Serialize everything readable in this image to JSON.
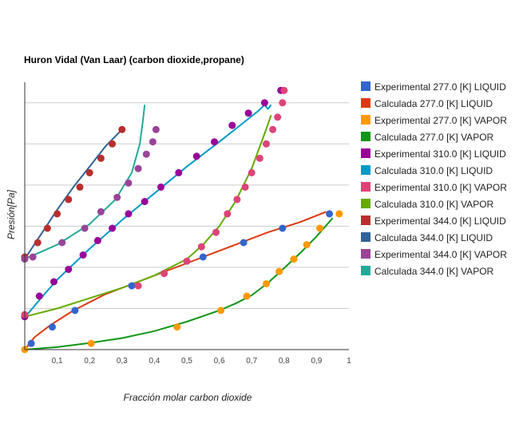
{
  "chart_data": {
    "type": "scatter",
    "title": "Huron Vidal (Van Laar) (carbon dioxide,propane)",
    "xlabel": "Fracción molar carbon dioxide",
    "ylabel": "Presión[Pa]",
    "xlim": [
      0,
      1
    ],
    "ylim": [
      0,
      6.5
    ],
    "x_ticks": [
      "0,1",
      "0,2",
      "0,3",
      "0,4",
      "0,5",
      "0,6",
      "0,7",
      "0,8",
      "0,9",
      "1"
    ],
    "y_ticks_labeled": false,
    "grid": "horizontal",
    "legend_position": "right",
    "series": [
      {
        "name": "Experimental 277.0 [K]  LIQUID",
        "kind": "points",
        "color": "#3366cc",
        "points": [
          [
            0.02,
            0.15
          ],
          [
            0.085,
            0.55
          ],
          [
            0.155,
            0.95
          ],
          [
            0.33,
            1.55
          ],
          [
            0.55,
            2.25
          ],
          [
            0.675,
            2.6
          ],
          [
            0.795,
            2.95
          ],
          [
            0.94,
            3.3
          ]
        ]
      },
      {
        "name": "Calculada 277.0 [K] LIQUID",
        "kind": "line",
        "color": "#dc3912",
        "points": [
          [
            0.0,
            0.0
          ],
          [
            0.03,
            0.3
          ],
          [
            0.08,
            0.6
          ],
          [
            0.15,
            0.95
          ],
          [
            0.25,
            1.35
          ],
          [
            0.35,
            1.65
          ],
          [
            0.45,
            1.95
          ],
          [
            0.55,
            2.25
          ],
          [
            0.65,
            2.55
          ],
          [
            0.75,
            2.85
          ],
          [
            0.85,
            3.1
          ],
          [
            0.93,
            3.35
          ]
        ]
      },
      {
        "name": "Experimental 277.0 [K] VAPOR",
        "kind": "points",
        "color": "#ff9900",
        "points": [
          [
            0.0,
            0.0
          ],
          [
            0.205,
            0.15
          ],
          [
            0.47,
            0.55
          ],
          [
            0.605,
            0.95
          ],
          [
            0.685,
            1.3
          ],
          [
            0.745,
            1.6
          ],
          [
            0.785,
            1.9
          ],
          [
            0.83,
            2.2
          ],
          [
            0.87,
            2.55
          ],
          [
            0.91,
            2.95
          ],
          [
            0.97,
            3.3
          ]
        ]
      },
      {
        "name": "Calculada 277.0 [K] VAPOR",
        "kind": "line",
        "color": "#109618",
        "points": [
          [
            0.0,
            0.0
          ],
          [
            0.1,
            0.06
          ],
          [
            0.2,
            0.16
          ],
          [
            0.3,
            0.28
          ],
          [
            0.4,
            0.45
          ],
          [
            0.5,
            0.68
          ],
          [
            0.6,
            0.95
          ],
          [
            0.65,
            1.12
          ],
          [
            0.7,
            1.32
          ],
          [
            0.75,
            1.62
          ],
          [
            0.8,
            1.98
          ],
          [
            0.85,
            2.35
          ],
          [
            0.9,
            2.75
          ],
          [
            0.95,
            3.2
          ]
        ]
      },
      {
        "name": "Experimental 310.0 [K]  LIQUID",
        "kind": "points",
        "color": "#990099",
        "points": [
          [
            0.0,
            0.8
          ],
          [
            0.045,
            1.3
          ],
          [
            0.09,
            1.65
          ],
          [
            0.135,
            1.95
          ],
          [
            0.18,
            2.3
          ],
          [
            0.225,
            2.65
          ],
          [
            0.27,
            2.95
          ],
          [
            0.32,
            3.3
          ],
          [
            0.37,
            3.6
          ],
          [
            0.42,
            3.95
          ],
          [
            0.475,
            4.3
          ],
          [
            0.53,
            4.7
          ],
          [
            0.585,
            5.05
          ],
          [
            0.64,
            5.45
          ],
          [
            0.69,
            5.75
          ],
          [
            0.74,
            6.0
          ],
          [
            0.79,
            6.3
          ]
        ]
      },
      {
        "name": "Calculada 310.0 [K] LIQUID",
        "kind": "line",
        "color": "#0099c6",
        "points": [
          [
            0.0,
            0.78
          ],
          [
            0.05,
            1.25
          ],
          [
            0.1,
            1.7
          ],
          [
            0.2,
            2.45
          ],
          [
            0.3,
            3.15
          ],
          [
            0.4,
            3.8
          ],
          [
            0.5,
            4.45
          ],
          [
            0.6,
            5.05
          ],
          [
            0.68,
            5.55
          ],
          [
            0.72,
            5.8
          ],
          [
            0.74,
            5.95
          ],
          [
            0.75,
            5.85
          ],
          [
            0.76,
            5.95
          ]
        ]
      },
      {
        "name": "Experimental 310.0 [K] VAPOR",
        "kind": "points",
        "color": "#dd4477",
        "points": [
          [
            0.0,
            0.85
          ],
          [
            0.35,
            1.55
          ],
          [
            0.43,
            1.85
          ],
          [
            0.5,
            2.15
          ],
          [
            0.545,
            2.5
          ],
          [
            0.59,
            2.85
          ],
          [
            0.625,
            3.3
          ],
          [
            0.655,
            3.65
          ],
          [
            0.68,
            3.95
          ],
          [
            0.7,
            4.3
          ],
          [
            0.725,
            4.65
          ],
          [
            0.745,
            5.0
          ],
          [
            0.765,
            5.35
          ],
          [
            0.78,
            5.65
          ],
          [
            0.795,
            6.0
          ],
          [
            0.8,
            6.3
          ]
        ]
      },
      {
        "name": "Calculada 310.0 [K] VAPOR",
        "kind": "line",
        "color": "#66aa00",
        "points": [
          [
            0.0,
            0.8
          ],
          [
            0.1,
            1.0
          ],
          [
            0.2,
            1.25
          ],
          [
            0.3,
            1.5
          ],
          [
            0.4,
            1.8
          ],
          [
            0.5,
            2.2
          ],
          [
            0.55,
            2.55
          ],
          [
            0.6,
            3.0
          ],
          [
            0.65,
            3.6
          ],
          [
            0.7,
            4.4
          ],
          [
            0.74,
            5.25
          ],
          [
            0.76,
            5.7
          ]
        ]
      },
      {
        "name": "Experimental 344.0 [K]  LIQUID",
        "kind": "points",
        "color": "#b82e2e",
        "points": [
          [
            0.0,
            2.25
          ],
          [
            0.04,
            2.6
          ],
          [
            0.07,
            2.95
          ],
          [
            0.1,
            3.3
          ],
          [
            0.135,
            3.65
          ],
          [
            0.17,
            3.95
          ],
          [
            0.2,
            4.3
          ],
          [
            0.235,
            4.65
          ],
          [
            0.27,
            5.0
          ],
          [
            0.3,
            5.35
          ]
        ]
      },
      {
        "name": "Calculada 344.0 [K] LIQUID",
        "kind": "line",
        "color": "#316395",
        "points": [
          [
            0.0,
            2.2
          ],
          [
            0.05,
            2.8
          ],
          [
            0.1,
            3.4
          ],
          [
            0.15,
            3.95
          ],
          [
            0.2,
            4.45
          ],
          [
            0.25,
            4.95
          ],
          [
            0.3,
            5.35
          ]
        ]
      },
      {
        "name": "Experimental 344.0 [K] VAPOR",
        "kind": "points",
        "color": "#994499",
        "points": [
          [
            0.0,
            2.2
          ],
          [
            0.025,
            2.25
          ],
          [
            0.115,
            2.6
          ],
          [
            0.185,
            2.95
          ],
          [
            0.235,
            3.35
          ],
          [
            0.285,
            3.7
          ],
          [
            0.32,
            4.05
          ],
          [
            0.35,
            4.4
          ],
          [
            0.375,
            4.75
          ],
          [
            0.395,
            5.05
          ],
          [
            0.405,
            5.35
          ]
        ]
      },
      {
        "name": "Calculada 344.0 [K] VAPOR",
        "kind": "line",
        "color": "#22aa99",
        "points": [
          [
            0.0,
            2.2
          ],
          [
            0.1,
            2.55
          ],
          [
            0.2,
            3.05
          ],
          [
            0.28,
            3.65
          ],
          [
            0.33,
            4.3
          ],
          [
            0.355,
            5.0
          ],
          [
            0.365,
            5.6
          ],
          [
            0.37,
            5.95
          ]
        ]
      }
    ]
  }
}
